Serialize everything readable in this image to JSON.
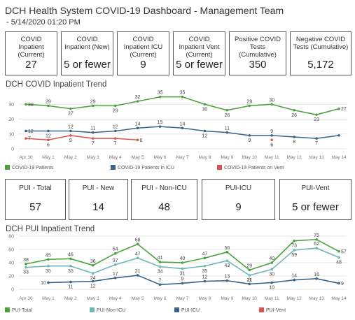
{
  "header": {
    "title": "DCH Health System COVID-19 Dashboard - Management Team",
    "subtitle": "- 5/14/2020 01:20 PM"
  },
  "top_kpis": [
    {
      "label": "COVID Inpatient (Current)",
      "value": "27"
    },
    {
      "label": "COVID Inpatient (New)",
      "value": "5 or fewer"
    },
    {
      "label": "COVID Inpatient ICU (Current)",
      "value": "9"
    },
    {
      "label": "COVID Inpatient Vent (Current)",
      "value": "5 or fewer"
    },
    {
      "label": "Positive COVID Tests (Cumulative)",
      "value": "350"
    },
    {
      "label": "Negative COVID Tests (Cumulative)",
      "value": "5,172"
    }
  ],
  "pui_kpis": [
    {
      "label": "PUI - Total",
      "value": "57"
    },
    {
      "label": "PUI - New",
      "value": "14"
    },
    {
      "label": "PUI - Non-ICU",
      "value": "48"
    },
    {
      "label": "PUI-ICU",
      "value": "9"
    },
    {
      "label": "PUI-Vent",
      "value": "5 or fewer"
    }
  ],
  "colors": {
    "green": "#4aa33a",
    "blue": "#36648b",
    "red": "#d9534f",
    "teal": "#6fb7b7",
    "grid": "#e6e6e6",
    "axis_text": "#777777"
  },
  "chart_data": [
    {
      "type": "line",
      "title": "DCH COVID Inpatient Trend",
      "categories": [
        "Apr 30",
        "May 1",
        "May 2",
        "May 3",
        "May 4",
        "May 5",
        "May 6",
        "May 7",
        "May 8",
        "May 9",
        "May 10",
        "May 11",
        "May 12",
        "May 13",
        "May 14"
      ],
      "yticks": [
        0,
        10,
        20,
        30
      ],
      "ylim": [
        0,
        36
      ],
      "grid": true,
      "legend_position": "bottom",
      "series": [
        {
          "name": "COVID-19 Patients",
          "color": "#4aa33a",
          "values": [
            30,
            29,
            27,
            29,
            29,
            32,
            35,
            35,
            30,
            26,
            29,
            30,
            26,
            23,
            27
          ],
          "label_pos": [
            "r",
            "a",
            "b",
            "a",
            "b",
            "a",
            "a",
            "a",
            "b",
            "b",
            "a",
            "a",
            "b",
            "b",
            "r"
          ]
        },
        {
          "name": "COVID-19 Patients in ICU",
          "color": "#36648b",
          "values": [
            12,
            12,
            12,
            11,
            12,
            14,
            15,
            14,
            12,
            11,
            9,
            9,
            8,
            7,
            9
          ],
          "label_pos": [
            "r",
            "b",
            "a",
            "a",
            "a",
            "a",
            "a",
            "a",
            "b",
            "a",
            "b",
            "a",
            "b",
            "b",
            "n"
          ]
        },
        {
          "name": "COVID-19 Patients on Vent",
          "color": "#d9534f",
          "values": [
            7,
            6,
            9,
            7,
            7,
            6,
            null,
            null,
            null,
            null,
            null,
            6,
            null,
            null,
            null
          ],
          "label_pos": [
            "r",
            "b",
            "b",
            "b",
            "b",
            "r",
            "n",
            "n",
            "n",
            "n",
            "n",
            "b",
            "n",
            "n",
            "n"
          ]
        }
      ]
    },
    {
      "type": "line",
      "title": "DCH PUI Inpatient Trend",
      "categories": [
        "Apr 30",
        "May 1",
        "May 2",
        "May 3",
        "May 4",
        "May 5",
        "May 6",
        "May 7",
        "May 8",
        "May 9",
        "May 10",
        "May 11",
        "May 12",
        "May 13",
        "May 14"
      ],
      "yticks": [
        0,
        20,
        40,
        60,
        80
      ],
      "ylim": [
        0,
        80
      ],
      "grid": true,
      "legend_position": "bottom",
      "series": [
        {
          "name": "PUI-Total",
          "color": "#4aa33a",
          "values": [
            38,
            45,
            46,
            36,
            54,
            68,
            41,
            40,
            47,
            56,
            29,
            40,
            73,
            75,
            57
          ],
          "label_pos": [
            "a",
            "a",
            "a",
            "a",
            "a",
            "a",
            "a",
            "a",
            "a",
            "a",
            "a",
            "a",
            "b",
            "a",
            "r"
          ]
        },
        {
          "name": "PUI-Non-ICU",
          "color": "#6fb7b7",
          "values": [
            33,
            35,
            35,
            24,
            37,
            47,
            34,
            31,
            35,
            43,
            21,
            30,
            59,
            62,
            48
          ],
          "label_pos": [
            "b",
            "b",
            "b",
            "b",
            "a",
            "a",
            "b",
            "b",
            "b",
            "b",
            "b",
            "b",
            "b",
            "a",
            "b"
          ]
        },
        {
          "name": "PUI-ICU",
          "color": "#36648b",
          "values": [
            null,
            10,
            11,
            12,
            17,
            21,
            7,
            9,
            12,
            13,
            8,
            10,
            14,
            16,
            9
          ],
          "label_pos": [
            "n",
            "l",
            "b",
            "b",
            "a",
            "a",
            "a",
            "a",
            "a",
            "a",
            "a",
            "b",
            "a",
            "a",
            "r"
          ]
        },
        {
          "name": "PUI-Vent",
          "color": "#d9534f",
          "values": [
            null,
            null,
            null,
            null,
            null,
            null,
            null,
            null,
            null,
            null,
            null,
            null,
            null,
            null,
            null
          ],
          "label_pos": [
            "n",
            "n",
            "n",
            "n",
            "n",
            "n",
            "n",
            "n",
            "n",
            "n",
            "n",
            "n",
            "n",
            "n",
            "n"
          ]
        }
      ]
    }
  ]
}
